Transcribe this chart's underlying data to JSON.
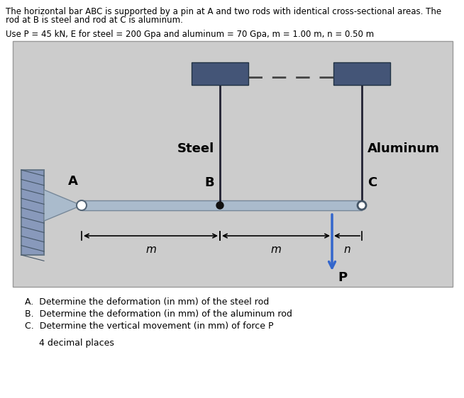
{
  "title_line1": "The horizontal bar ABC is supported by a pin at A and two rods with identical cross-sectional areas. The",
  "title_line2": "rod at B is steel and rod at C is aluminum.",
  "params_line": "Use P = 45 kN, E for steel = 200 Gpa and aluminum = 70 Gpa, m = 1.00 m, n = 0.50 m",
  "label_steel": "Steel",
  "label_aluminum": "Aluminum",
  "label_A": "A",
  "label_B": "B",
  "label_C": "C",
  "label_m1": "m",
  "label_m2": "m",
  "label_n": "n",
  "label_P": "P",
  "questions": [
    "A.  Determine the deformation (in mm) of the steel rod",
    "B.  Determine the deformation (in mm) of the aluminum rod",
    "C.  Determine the vertical movement (in mm) of force P"
  ],
  "note": "4 decimal places",
  "bg_color": "#cccccc",
  "wall_color": "#8899bb",
  "bar_color": "#aabbcc",
  "rod_color": "#222233",
  "arrow_color": "#3366cc",
  "dashed_color": "#444444",
  "top_block_color": "#445577",
  "fig_width": 6.54,
  "fig_height": 5.62,
  "dpi": 100
}
